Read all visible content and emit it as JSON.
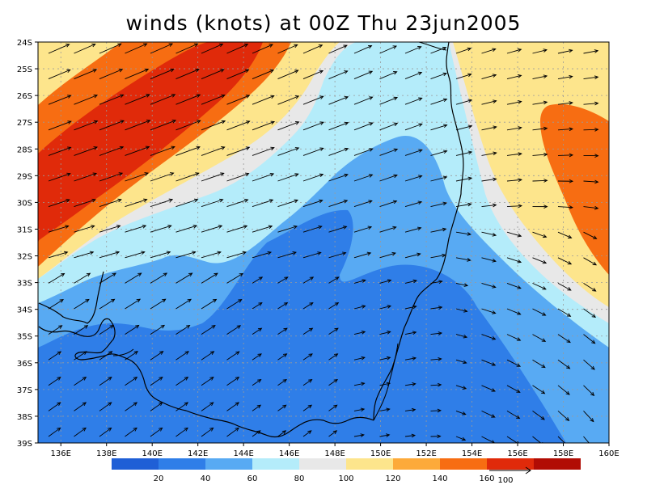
{
  "title": "winds (knots) at 00Z Thu 23jun2005",
  "map": {
    "lat_labels": [
      "24S",
      "25S",
      "26S",
      "27S",
      "28S",
      "29S",
      "30S",
      "31S",
      "32S",
      "33S",
      "34S",
      "35S",
      "36S",
      "37S",
      "38S",
      "39S"
    ],
    "lon_labels": [
      "136E",
      "138E",
      "140E",
      "142E",
      "144E",
      "146E",
      "148E",
      "150E",
      "152E",
      "154E",
      "156E",
      "158E",
      "160E"
    ],
    "lat_range": [
      -39,
      -24
    ],
    "lon_range": [
      135,
      160
    ],
    "grid": true
  },
  "colorbar": {
    "labels": [
      "20",
      "40",
      "60",
      "80",
      "100",
      "120",
      "140",
      "160"
    ],
    "colors": [
      "#1f5fd6",
      "#2f7ee8",
      "#58aaf3",
      "#b4ecfa",
      "#e8e8e8",
      "#fde58c",
      "#fdaa3a",
      "#f76d12",
      "#e02a0a",
      "#b10c04"
    ],
    "vector_ref_label": "100"
  }
}
